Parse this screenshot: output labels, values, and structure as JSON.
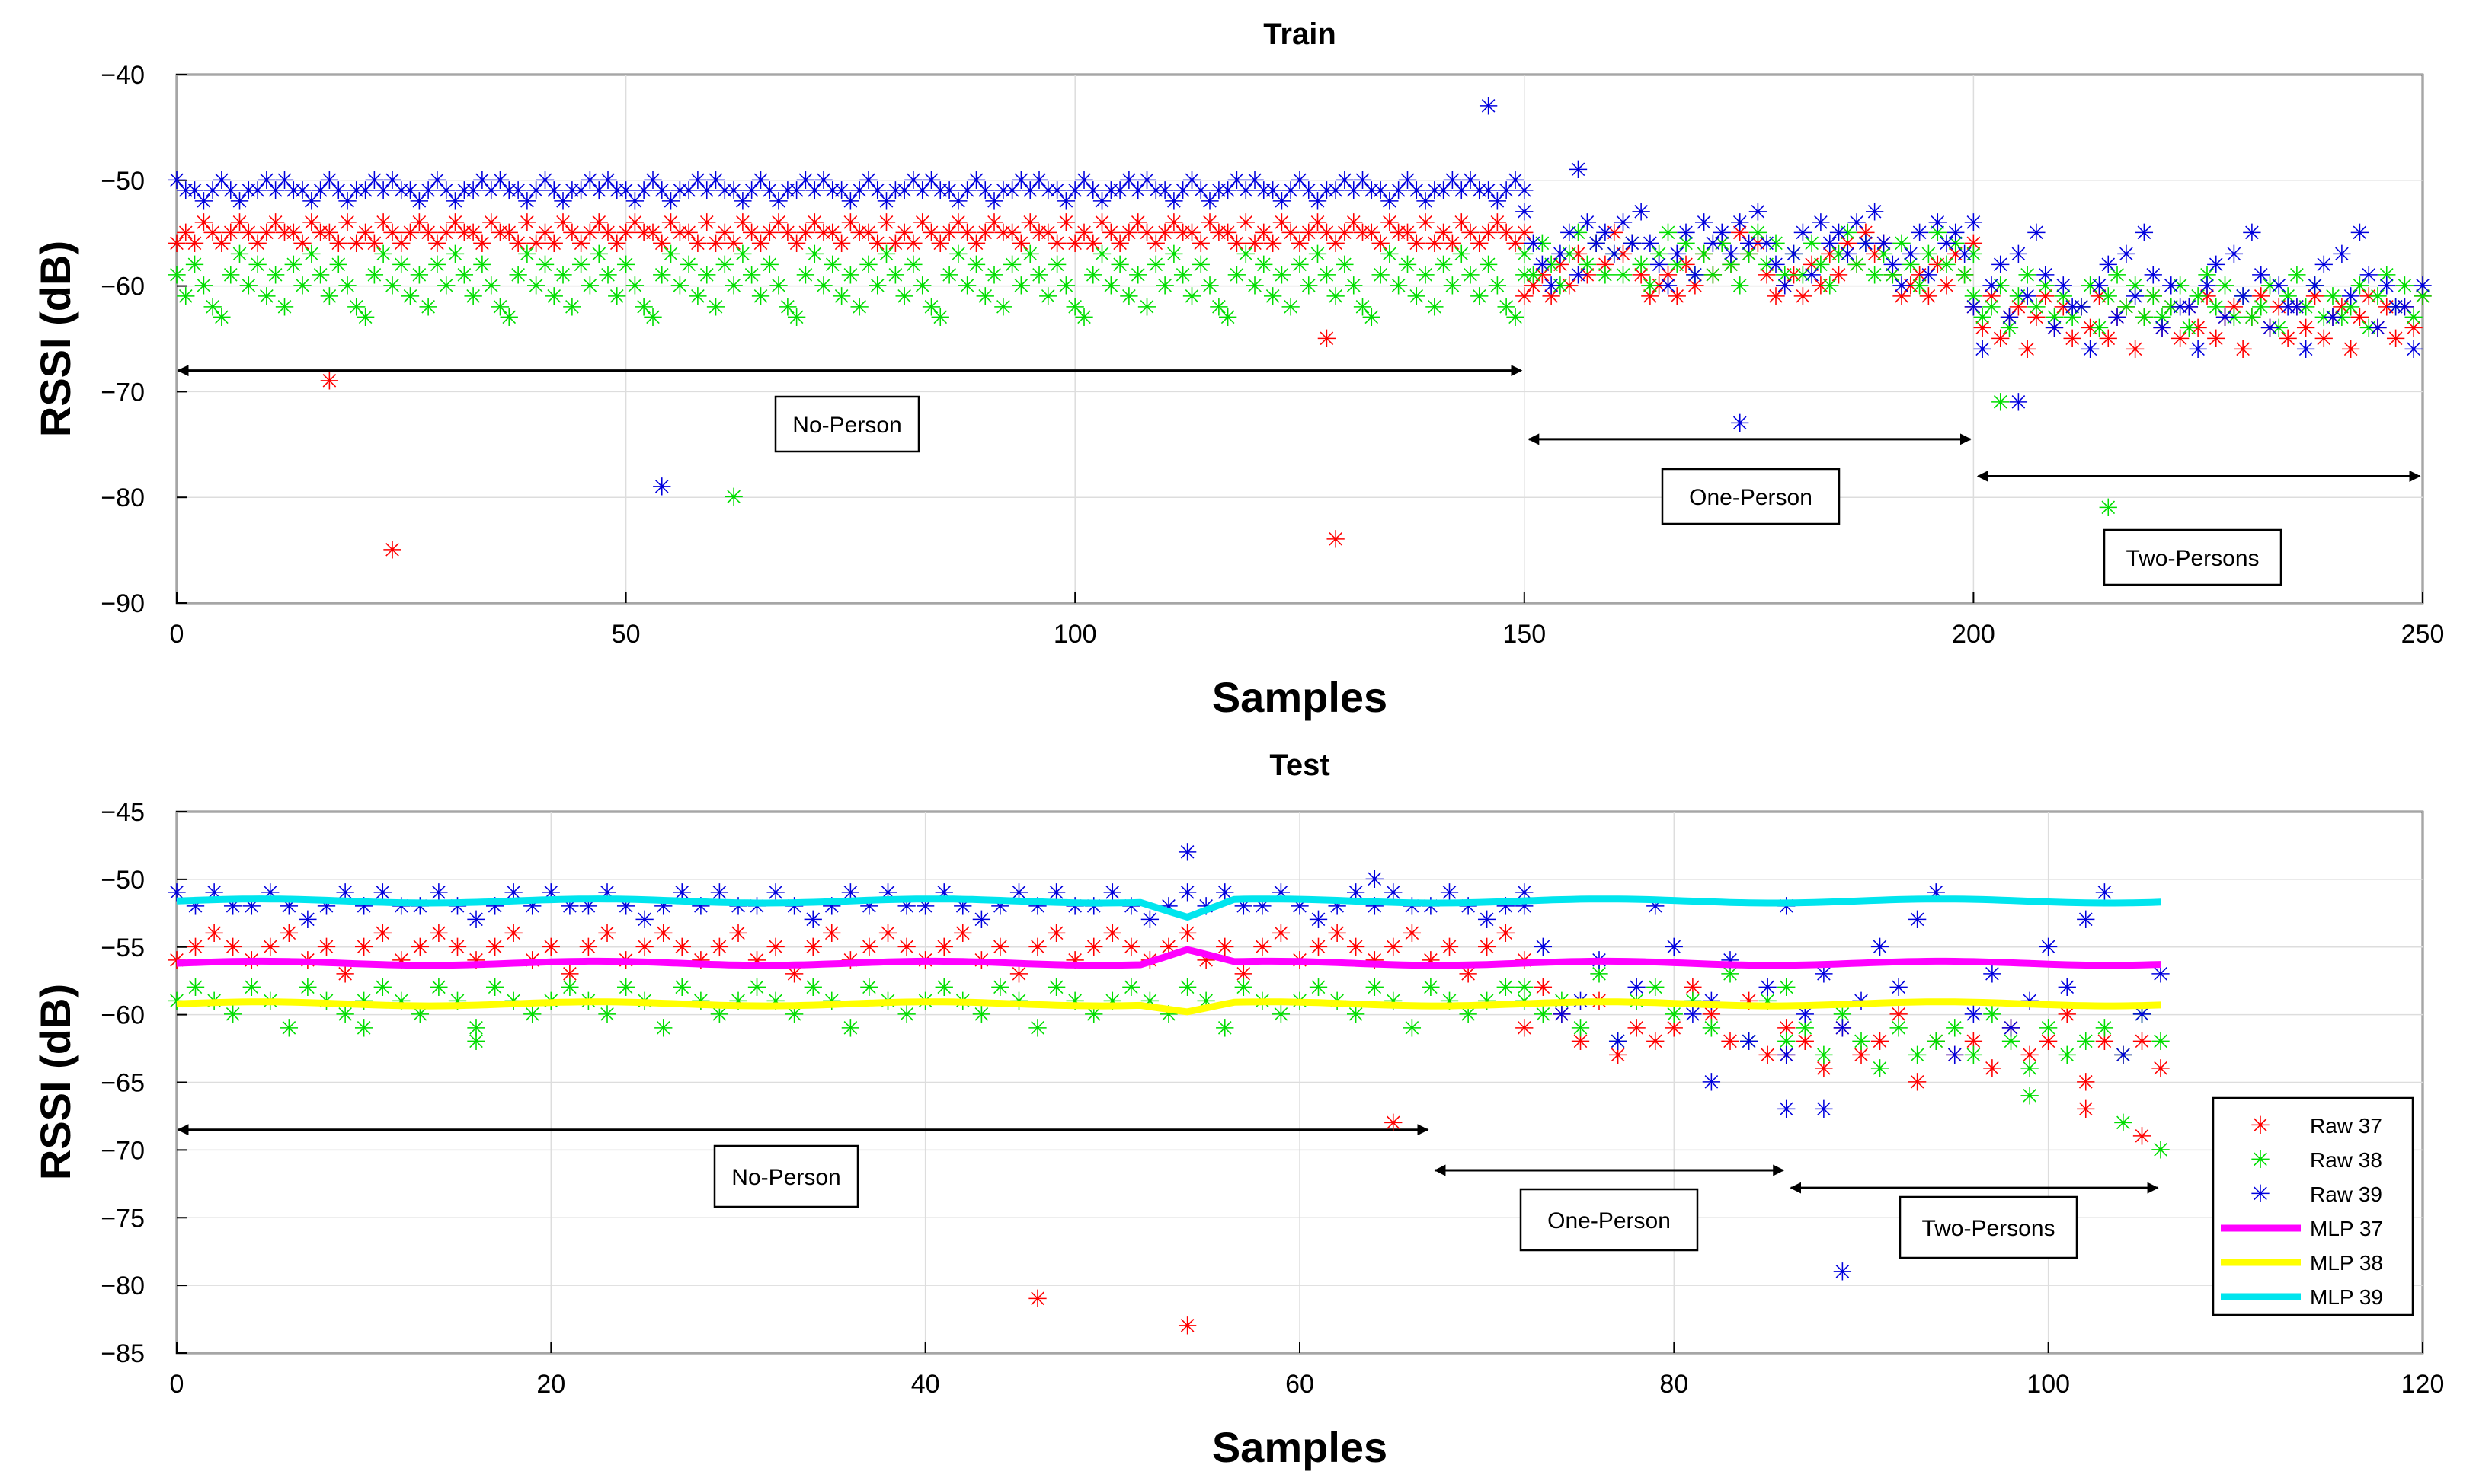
{
  "chart_data": [
    {
      "type": "scatter",
      "title": "Train",
      "xlabel": "Samples",
      "ylabel": "RSSI (dB)",
      "xlim": [
        0,
        250
      ],
      "ylim": [
        -90,
        -40
      ],
      "xticks": [
        0,
        50,
        100,
        150,
        200,
        250
      ],
      "yticks": [
        -40,
        -50,
        -60,
        -70,
        -80,
        -90
      ],
      "grid": true,
      "regions": [
        {
          "label": "No-Person",
          "start": 0,
          "end": 150,
          "arrow_y": -68
        },
        {
          "label": "One-Person",
          "start": 150,
          "end": 200,
          "arrow_y": -74.5
        },
        {
          "label": "Two-Persons",
          "start": 200,
          "end": 250,
          "arrow_y": -78
        }
      ],
      "series": [
        {
          "name": "Raw 37",
          "color": "#ff0000",
          "segments": [
            {
              "x_start": 0,
              "x_end": 150,
              "pattern": [
                -56,
                -55,
                -56,
                -54,
                -55,
                -56,
                -55,
                -54,
                -55,
                -56,
                -55,
                -54,
                -55,
                -55,
                -56,
                -54,
                -55,
                -55,
                -56,
                -54
              ]
            },
            {
              "x_start": 150,
              "x_end": 200,
              "pattern": [
                -61,
                -60,
                -59,
                -61,
                -58,
                -60,
                -57,
                -59,
                -56,
                -58,
                -55,
                -57,
                -56,
                -59
              ]
            },
            {
              "x_start": 200,
              "x_end": 250,
              "pattern": [
                -62,
                -64,
                -61,
                -65,
                -63,
                -62,
                -66,
                -63,
                -61,
                -64,
                -62,
                -65
              ]
            }
          ],
          "outliers": [
            [
              17,
              -69
            ],
            [
              24,
              -85
            ],
            [
              128,
              -65
            ],
            [
              129,
              -84
            ]
          ]
        },
        {
          "name": "Raw 38",
          "color": "#00dd00",
          "segments": [
            {
              "x_start": 0,
              "x_end": 150,
              "pattern": [
                -59,
                -61,
                -58,
                -60,
                -62,
                -63,
                -59,
                -57,
                -60,
                -58,
                -61,
                -59,
                -62,
                -58,
                -60,
                -57
              ]
            },
            {
              "x_start": 150,
              "x_end": 200,
              "pattern": [
                -57,
                -59,
                -56,
                -58,
                -60,
                -57,
                -55,
                -58,
                -56,
                -59
              ]
            },
            {
              "x_start": 200,
              "x_end": 250,
              "pattern": [
                -61,
                -63,
                -62,
                -60,
                -64,
                -61,
                -59,
                -62,
                -60,
                -63
              ]
            }
          ],
          "outliers": [
            [
              62,
              -80
            ],
            [
              203,
              -71
            ],
            [
              215,
              -81
            ]
          ]
        },
        {
          "name": "Raw 39",
          "color": "#0000dd",
          "segments": [
            {
              "x_start": 0,
              "x_end": 150,
              "pattern": [
                -50,
                -51,
                -51,
                -52,
                -51,
                -50,
                -51,
                -52,
                -51,
                -51,
                -50,
                -51
              ]
            },
            {
              "x_start": 150,
              "x_end": 200,
              "pattern": [
                -53,
                -56,
                -58,
                -60,
                -57,
                -55,
                -59,
                -54,
                -56,
                -55,
                -57,
                -54,
                -56
              ]
            },
            {
              "x_start": 200,
              "x_end": 250,
              "pattern": [
                -62,
                -66,
                -60,
                -58,
                -63,
                -57,
                -61,
                -55,
                -59,
                -64,
                -60,
                -62
              ]
            }
          ],
          "outliers": [
            [
              54,
              -79
            ],
            [
              146,
              -43
            ],
            [
              156,
              -49
            ],
            [
              174,
              -73
            ],
            [
              205,
              -71
            ]
          ]
        }
      ]
    },
    {
      "type": "line+scatter",
      "title": "Test",
      "xlabel": "Samples",
      "ylabel": "RSSI (dB)",
      "xlim": [
        0,
        120
      ],
      "ylim": [
        -85,
        -45
      ],
      "xticks": [
        0,
        20,
        40,
        60,
        80,
        100,
        120
      ],
      "yticks": [
        -45,
        -50,
        -55,
        -60,
        -65,
        -70,
        -75,
        -80,
        -85
      ],
      "grid": true,
      "legend_position": "bottom-right",
      "regions": [
        {
          "label": "No-Person",
          "start": 0,
          "end": 67,
          "arrow_y": -68.5
        },
        {
          "label": "One-Person",
          "start": 67,
          "end": 86,
          "arrow_y": -71.5
        },
        {
          "label": "Two-Persons",
          "start": 86,
          "end": 106,
          "arrow_y": -72.8
        }
      ],
      "series": [
        {
          "name": "Raw 37",
          "color": "#ff0000",
          "segments": [
            {
              "x_start": 0,
              "x_end": 72,
              "pattern": [
                -56,
                -55,
                -54,
                -55,
                -56,
                -55,
                -54,
                -56,
                -55,
                -57,
                -55,
                -54
              ]
            },
            {
              "x_start": 72,
              "x_end": 86,
              "pattern": [
                -61,
                -58,
                -60,
                -62,
                -59,
                -63,
                -61,
                -62
              ]
            },
            {
              "x_start": 86,
              "x_end": 106,
              "pattern": [
                -63,
                -62,
                -64,
                -61,
                -63,
                -62,
                -60,
                -65,
                -62
              ]
            }
          ],
          "outliers": [
            [
              46,
              -81
            ],
            [
              54,
              -83
            ],
            [
              65,
              -68
            ],
            [
              102,
              -67
            ],
            [
              105,
              -69
            ]
          ]
        },
        {
          "name": "Raw 38",
          "color": "#00dd00",
          "segments": [
            {
              "x_start": 0,
              "x_end": 72,
              "pattern": [
                -59,
                -58,
                -59,
                -60,
                -58,
                -59,
                -61,
                -58,
                -59,
                -60
              ]
            },
            {
              "x_start": 72,
              "x_end": 86,
              "pattern": [
                -58,
                -60,
                -59,
                -61,
                -57,
                -62,
                -59
              ]
            },
            {
              "x_start": 86,
              "x_end": 106,
              "pattern": [
                -62,
                -61,
                -63,
                -60,
                -62,
                -64,
                -61,
                -63
              ]
            }
          ],
          "outliers": [
            [
              10,
              -61
            ],
            [
              16,
              -62
            ],
            [
              99,
              -66
            ],
            [
              104,
              -68
            ],
            [
              106,
              -70
            ]
          ]
        },
        {
          "name": "Raw 39",
          "color": "#0000dd",
          "segments": [
            {
              "x_start": 0,
              "x_end": 72,
              "pattern": [
                -51,
                -52,
                -51,
                -52,
                -52,
                -51,
                -52,
                -53,
                -52
              ]
            },
            {
              "x_start": 72,
              "x_end": 86,
              "pattern": [
                -52,
                -55,
                -60,
                -59,
                -56,
                -62,
                -58
              ]
            },
            {
              "x_start": 86,
              "x_end": 106,
              "pattern": [
                -63,
                -60,
                -57,
                -61,
                -59,
                -55,
                -58,
                -53,
                -51
              ]
            }
          ],
          "outliers": [
            [
              54,
              -48
            ],
            [
              64,
              -50
            ],
            [
              82,
              -65
            ],
            [
              86,
              -67
            ],
            [
              88,
              -67
            ],
            [
              89,
              -79
            ]
          ]
        },
        {
          "name": "MLP 37",
          "color": "#ff00ff",
          "line": true,
          "x_start": 0,
          "x_end": 106,
          "base": -56.2,
          "dip": 1.0
        },
        {
          "name": "MLP 38",
          "color": "#ffff00",
          "line": true,
          "x_start": 0,
          "x_end": 106,
          "base": -59.2,
          "dip": -0.6
        },
        {
          "name": "MLP 39",
          "color": "#00e5ee",
          "line": true,
          "x_start": 0,
          "x_end": 106,
          "base": -51.6,
          "dip": -1.2
        }
      ]
    }
  ]
}
